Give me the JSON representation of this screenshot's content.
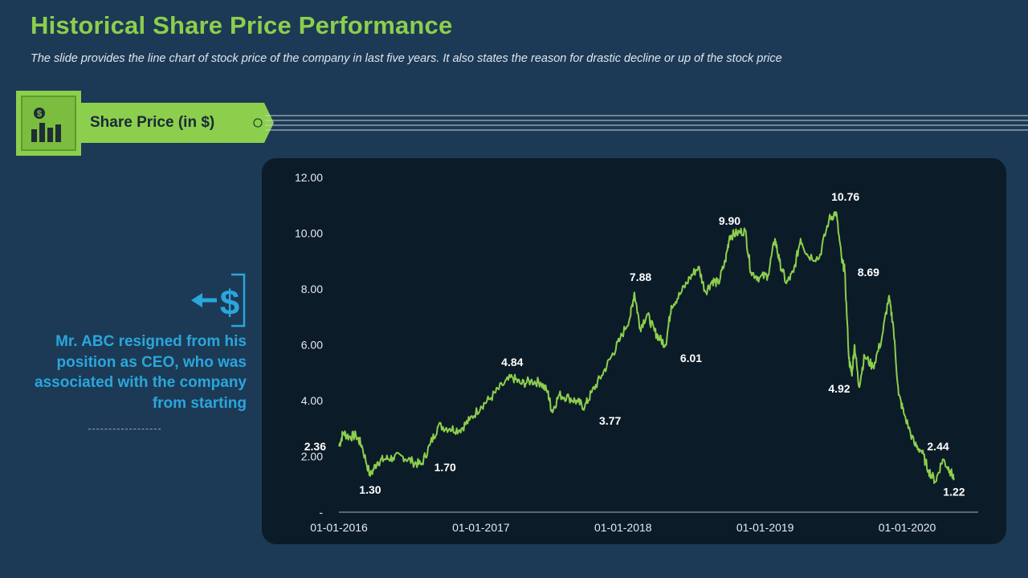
{
  "page": {
    "title": "Historical Share Price Performance",
    "subtitle": "The slide provides the line chart of stock price of the company in last five years. It also states the reason for drastic decline or up of the stock price"
  },
  "banner": {
    "label": "Share Price (in $)",
    "icon": "dollar-bar-chart-icon"
  },
  "note": {
    "icon": "dollar-arrow-icon",
    "text": "Mr. ABC resigned from his position as CEO, who was associated with the company from starting"
  },
  "colors": {
    "background": "#1c3a55",
    "accent_green": "#8ccf4d",
    "accent_blue": "#2aa6dd",
    "panel": "#0c1b28"
  },
  "chart_data": {
    "type": "line",
    "title": "Share Price (in $)",
    "xlabel": "",
    "ylabel": "",
    "ylim": [
      0,
      12
    ],
    "yticks": [
      "-",
      "2.00",
      "4.00",
      "6.00",
      "8.00",
      "10.00",
      "12.00"
    ],
    "xlim": [
      2016.0,
      2020.5
    ],
    "xticks": [
      {
        "x": 2016,
        "label": "01-01-2016"
      },
      {
        "x": 2017,
        "label": "01-01-2017"
      },
      {
        "x": 2018,
        "label": "01-01-2018"
      },
      {
        "x": 2019,
        "label": "01-01-2019"
      },
      {
        "x": 2020,
        "label": "01-01-2020"
      }
    ],
    "series": [
      {
        "name": "Share Price",
        "color": "#8ccf4d",
        "points": [
          [
            2016.0,
            2.36
          ],
          [
            2016.03,
            2.85
          ],
          [
            2016.07,
            2.7
          ],
          [
            2016.12,
            2.75
          ],
          [
            2016.16,
            2.4
          ],
          [
            2016.22,
            1.3
          ],
          [
            2016.27,
            1.8
          ],
          [
            2016.32,
            1.9
          ],
          [
            2016.38,
            1.95
          ],
          [
            2016.45,
            2.0
          ],
          [
            2016.52,
            1.8
          ],
          [
            2016.58,
            1.7
          ],
          [
            2016.64,
            2.4
          ],
          [
            2016.7,
            3.1
          ],
          [
            2016.78,
            3.0
          ],
          [
            2016.85,
            2.95
          ],
          [
            2016.92,
            3.3
          ],
          [
            2017.0,
            3.8
          ],
          [
            2017.07,
            4.1
          ],
          [
            2017.15,
            4.55
          ],
          [
            2017.22,
            4.84
          ],
          [
            2017.28,
            4.6
          ],
          [
            2017.35,
            4.7
          ],
          [
            2017.42,
            4.65
          ],
          [
            2017.47,
            4.3
          ],
          [
            2017.5,
            3.6
          ],
          [
            2017.55,
            4.2
          ],
          [
            2017.62,
            4.1
          ],
          [
            2017.68,
            3.95
          ],
          [
            2017.73,
            3.77
          ],
          [
            2017.78,
            4.3
          ],
          [
            2017.85,
            4.9
          ],
          [
            2017.92,
            5.6
          ],
          [
            2017.98,
            6.2
          ],
          [
            2018.05,
            7.0
          ],
          [
            2018.08,
            7.88
          ],
          [
            2018.12,
            6.6
          ],
          [
            2018.17,
            7.1
          ],
          [
            2018.22,
            6.5
          ],
          [
            2018.26,
            6.2
          ],
          [
            2018.3,
            6.01
          ],
          [
            2018.34,
            7.4
          ],
          [
            2018.4,
            7.8
          ],
          [
            2018.47,
            8.4
          ],
          [
            2018.53,
            8.8
          ],
          [
            2018.58,
            7.9
          ],
          [
            2018.63,
            8.3
          ],
          [
            2018.67,
            8.2
          ],
          [
            2018.72,
            9.0
          ],
          [
            2018.75,
            9.9
          ],
          [
            2018.8,
            10.0
          ],
          [
            2018.86,
            10.1
          ],
          [
            2018.9,
            8.6
          ],
          [
            2018.96,
            8.4
          ],
          [
            2019.02,
            8.5
          ],
          [
            2019.07,
            9.8
          ],
          [
            2019.1,
            9.0
          ],
          [
            2019.15,
            8.2
          ],
          [
            2019.2,
            8.6
          ],
          [
            2019.25,
            9.8
          ],
          [
            2019.3,
            9.2
          ],
          [
            2019.38,
            9.1
          ],
          [
            2019.45,
            10.5
          ],
          [
            2019.5,
            10.76
          ],
          [
            2019.54,
            9.0
          ],
          [
            2019.56,
            8.69
          ],
          [
            2019.59,
            5.5
          ],
          [
            2019.61,
            4.92
          ],
          [
            2019.63,
            6.0
          ],
          [
            2019.66,
            4.5
          ],
          [
            2019.7,
            5.6
          ],
          [
            2019.76,
            5.2
          ],
          [
            2019.82,
            6.2
          ],
          [
            2019.87,
            7.7
          ],
          [
            2019.9,
            6.8
          ],
          [
            2019.94,
            4.2
          ],
          [
            2019.98,
            3.5
          ],
          [
            2020.05,
            2.44
          ],
          [
            2020.1,
            2.2
          ],
          [
            2020.15,
            1.5
          ],
          [
            2020.2,
            1.1
          ],
          [
            2020.25,
            1.9
          ],
          [
            2020.3,
            1.5
          ],
          [
            2020.33,
            1.22
          ]
        ]
      }
    ],
    "annotations": [
      {
        "x": 2016.0,
        "y": 2.36,
        "label": "2.36",
        "pos": "left"
      },
      {
        "x": 2016.22,
        "y": 1.3,
        "label": "1.30",
        "pos": "below"
      },
      {
        "x": 2016.58,
        "y": 1.7,
        "label": "1.70",
        "pos": "right"
      },
      {
        "x": 2017.22,
        "y": 4.84,
        "label": "4.84",
        "pos": "above"
      },
      {
        "x": 2017.73,
        "y": 3.77,
        "label": "3.77",
        "pos": "below-right"
      },
      {
        "x": 2018.08,
        "y": 7.88,
        "label": "7.88",
        "pos": "above-right"
      },
      {
        "x": 2018.3,
        "y": 6.01,
        "label": "6.01",
        "pos": "below-right"
      },
      {
        "x": 2018.75,
        "y": 9.9,
        "label": "9.90",
        "pos": "above"
      },
      {
        "x": 2019.5,
        "y": 10.76,
        "label": "10.76",
        "pos": "above-right"
      },
      {
        "x": 2019.56,
        "y": 8.69,
        "label": "8.69",
        "pos": "right"
      },
      {
        "x": 2019.61,
        "y": 4.92,
        "label": "4.92",
        "pos": "below-left"
      },
      {
        "x": 2020.05,
        "y": 2.44,
        "label": "2.44",
        "pos": "right"
      },
      {
        "x": 2020.33,
        "y": 1.22,
        "label": "1.22",
        "pos": "below"
      }
    ]
  }
}
